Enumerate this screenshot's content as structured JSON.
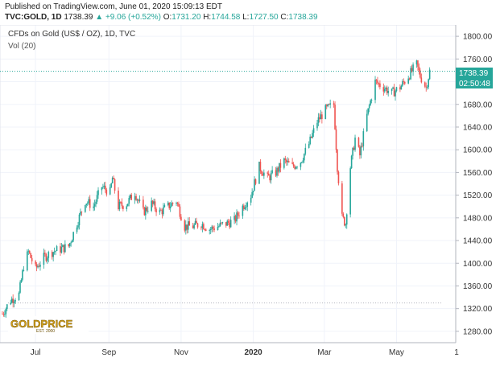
{
  "header": {
    "published": "Published on TradingView.com, June 01, 2020 15:09:13 EDT",
    "symbol": "TVC:GOLD, 1D",
    "last": "1738.39",
    "arrow": "▲",
    "change": "+9.06 (+0.52%)",
    "o_label": "O:",
    "o": "1731.20",
    "h_label": "H:",
    "h": "1744.58",
    "l_label": "L:",
    "l": "1727.50",
    "c_label": "C:",
    "c": "1738.39"
  },
  "legend": {
    "title": "CFDs on Gold (US$ / OZ), 1D, TVC",
    "vol": "Vol (20)"
  },
  "price_badge": {
    "value": "1738.39",
    "countdown": "02:50:48"
  },
  "logo": {
    "text": "GOLDPRICE",
    "sub": "EST. 2000"
  },
  "colors": {
    "up": "#26a69a",
    "down": "#ef5350",
    "last_line": "#26a69a"
  },
  "chart_data": {
    "type": "candlestick",
    "title": "CFDs on Gold (US$ / OZ), 1D, TVC",
    "y_ticks": [
      1280,
      1320,
      1360,
      1400,
      1440,
      1480,
      1520,
      1560,
      1600,
      1640,
      1680,
      1720,
      1760,
      1800
    ],
    "ylim": [
      1260,
      1820
    ],
    "x_ticks": [
      {
        "label": "Jul",
        "date": "2019-07-01"
      },
      {
        "label": "Sep",
        "date": "2019-09-01"
      },
      {
        "label": "Nov",
        "date": "2019-11-01"
      },
      {
        "label": "2020",
        "date": "2020-01-01"
      },
      {
        "label": "Mar",
        "date": "2020-03-01"
      },
      {
        "label": "May",
        "date": "2020-05-01"
      }
    ],
    "xlim": [
      "2019-06-01",
      "2020-06-20"
    ],
    "last_price": 1738.39,
    "dotted_level": 1330,
    "series": [
      {
        "date": "2019-06-03",
        "value": 1311
      },
      {
        "date": "2019-06-10",
        "value": 1335
      },
      {
        "date": "2019-06-17",
        "value": 1345
      },
      {
        "date": "2019-06-21",
        "value": 1395
      },
      {
        "date": "2019-06-25",
        "value": 1420
      },
      {
        "date": "2019-07-01",
        "value": 1390
      },
      {
        "date": "2019-07-08",
        "value": 1410
      },
      {
        "date": "2019-07-15",
        "value": 1420
      },
      {
        "date": "2019-07-22",
        "value": 1425
      },
      {
        "date": "2019-07-29",
        "value": 1430
      },
      {
        "date": "2019-08-05",
        "value": 1470
      },
      {
        "date": "2019-08-12",
        "value": 1510
      },
      {
        "date": "2019-08-19",
        "value": 1500
      },
      {
        "date": "2019-08-26",
        "value": 1535
      },
      {
        "date": "2019-09-02",
        "value": 1525
      },
      {
        "date": "2019-09-04",
        "value": 1550
      },
      {
        "date": "2019-09-09",
        "value": 1500
      },
      {
        "date": "2019-09-16",
        "value": 1505
      },
      {
        "date": "2019-09-23",
        "value": 1525
      },
      {
        "date": "2019-09-30",
        "value": 1490
      },
      {
        "date": "2019-10-07",
        "value": 1505
      },
      {
        "date": "2019-10-14",
        "value": 1490
      },
      {
        "date": "2019-10-21",
        "value": 1500
      },
      {
        "date": "2019-10-28",
        "value": 1510
      },
      {
        "date": "2019-11-04",
        "value": 1465
      },
      {
        "date": "2019-11-11",
        "value": 1465
      },
      {
        "date": "2019-11-18",
        "value": 1470
      },
      {
        "date": "2019-11-25",
        "value": 1460
      },
      {
        "date": "2019-12-02",
        "value": 1465
      },
      {
        "date": "2019-12-09",
        "value": 1470
      },
      {
        "date": "2019-12-16",
        "value": 1475
      },
      {
        "date": "2019-12-23",
        "value": 1500
      },
      {
        "date": "2019-12-30",
        "value": 1520
      },
      {
        "date": "2020-01-06",
        "value": 1570
      },
      {
        "date": "2020-01-13",
        "value": 1550
      },
      {
        "date": "2020-01-20",
        "value": 1560
      },
      {
        "date": "2020-01-27",
        "value": 1580
      },
      {
        "date": "2020-02-03",
        "value": 1570
      },
      {
        "date": "2020-02-10",
        "value": 1580
      },
      {
        "date": "2020-02-17",
        "value": 1610
      },
      {
        "date": "2020-02-24",
        "value": 1650
      },
      {
        "date": "2020-03-02",
        "value": 1670
      },
      {
        "date": "2020-03-09",
        "value": 1680
      },
      {
        "date": "2020-03-12",
        "value": 1570
      },
      {
        "date": "2020-03-16",
        "value": 1480
      },
      {
        "date": "2020-03-19",
        "value": 1470
      },
      {
        "date": "2020-03-23",
        "value": 1570
      },
      {
        "date": "2020-03-27",
        "value": 1620
      },
      {
        "date": "2020-03-31",
        "value": 1590
      },
      {
        "date": "2020-04-06",
        "value": 1660
      },
      {
        "date": "2020-04-13",
        "value": 1720
      },
      {
        "date": "2020-04-20",
        "value": 1710
      },
      {
        "date": "2020-04-27",
        "value": 1700
      },
      {
        "date": "2020-05-04",
        "value": 1710
      },
      {
        "date": "2020-05-11",
        "value": 1730
      },
      {
        "date": "2020-05-18",
        "value": 1750
      },
      {
        "date": "2020-05-21",
        "value": 1730
      },
      {
        "date": "2020-05-26",
        "value": 1710
      },
      {
        "date": "2020-05-29",
        "value": 1738.39
      }
    ]
  }
}
